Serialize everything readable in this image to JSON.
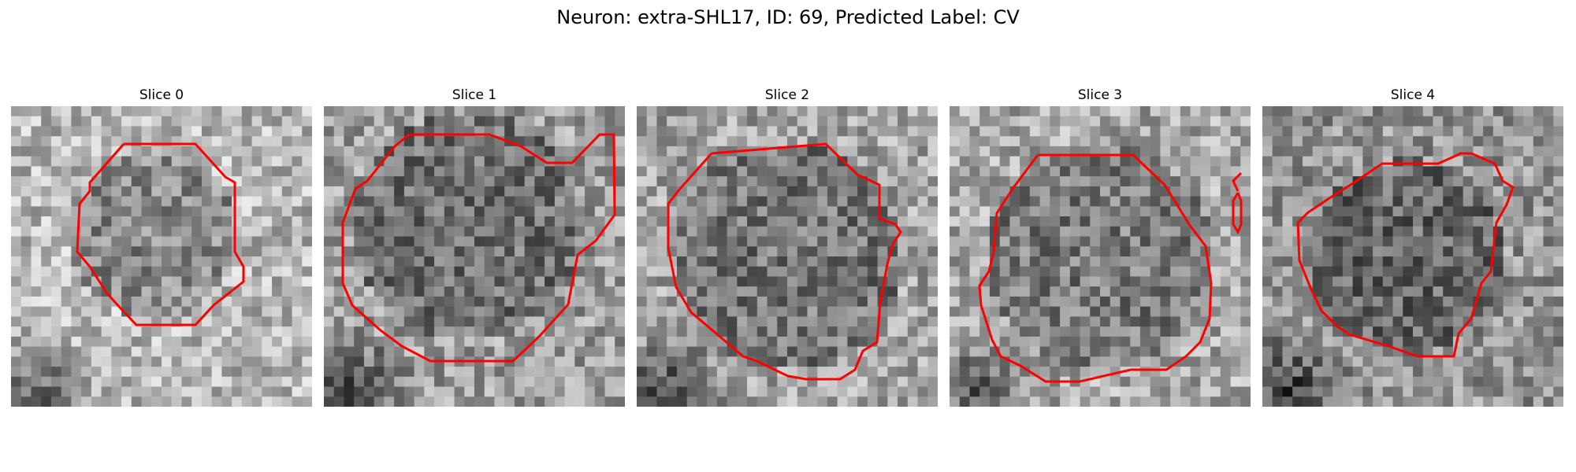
{
  "figure": {
    "title": "Neuron: extra-SHL17, ID: 69, Predicted Label: CV",
    "contour_color": "#ff0000",
    "grid_size": 30
  },
  "panels": [
    {
      "title": "Slice 0",
      "seed": 11,
      "bright": 0.72
    },
    {
      "title": "Slice 1",
      "seed": 23,
      "bright": 0.62
    },
    {
      "title": "Slice 2",
      "seed": 37,
      "bright": 0.64
    },
    {
      "title": "Slice 3",
      "seed": 41,
      "bright": 0.66
    },
    {
      "title": "Slice 4",
      "seed": 53,
      "bright": 0.58
    }
  ]
}
